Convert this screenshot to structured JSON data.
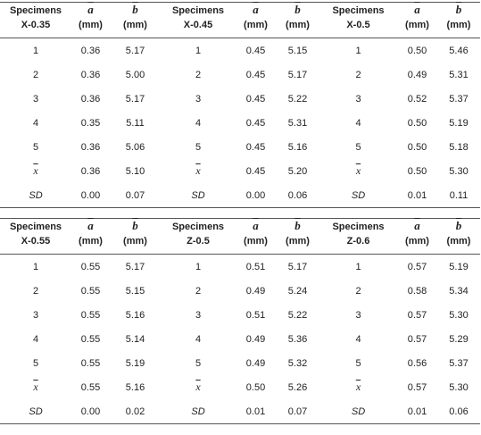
{
  "symbols": {
    "a": "a",
    "b": "b",
    "unit": "(mm)",
    "mean": "x",
    "sd": "SD"
  },
  "header_label": "Specimens",
  "groups_top": [
    {
      "name": "X-0.35",
      "rows": [
        [
          "1",
          "0.36",
          "5.17"
        ],
        [
          "2",
          "0.36",
          "5.00"
        ],
        [
          "3",
          "0.36",
          "5.17"
        ],
        [
          "4",
          "0.35",
          "5.11"
        ],
        [
          "5",
          "0.36",
          "5.06"
        ]
      ],
      "mean": [
        "0.36",
        "5.10"
      ],
      "sd": [
        "0.00",
        "0.07"
      ]
    },
    {
      "name": "X-0.45",
      "rows": [
        [
          "1",
          "0.45",
          "5.15"
        ],
        [
          "2",
          "0.45",
          "5.17"
        ],
        [
          "3",
          "0.45",
          "5.22"
        ],
        [
          "4",
          "0.45",
          "5.31"
        ],
        [
          "5",
          "0.45",
          "5.16"
        ]
      ],
      "mean": [
        "0.45",
        "5.20"
      ],
      "sd": [
        "0.00",
        "0.06"
      ]
    },
    {
      "name": "X-0.5",
      "rows": [
        [
          "1",
          "0.50",
          "5.46"
        ],
        [
          "2",
          "0.49",
          "5.31"
        ],
        [
          "3",
          "0.52",
          "5.37"
        ],
        [
          "4",
          "0.50",
          "5.19"
        ],
        [
          "5",
          "0.50",
          "5.18"
        ]
      ],
      "mean": [
        "0.50",
        "5.30"
      ],
      "sd": [
        "0.01",
        "0.11"
      ]
    }
  ],
  "groups_bottom": [
    {
      "name": "X-0.55",
      "rows": [
        [
          "1",
          "0.55",
          "5.17"
        ],
        [
          "2",
          "0.55",
          "5.15"
        ],
        [
          "3",
          "0.55",
          "5.16"
        ],
        [
          "4",
          "0.55",
          "5.14"
        ],
        [
          "5",
          "0.55",
          "5.19"
        ]
      ],
      "mean": [
        "0.55",
        "5.16"
      ],
      "sd": [
        "0.00",
        "0.02"
      ]
    },
    {
      "name": "Z-0.5",
      "rows": [
        [
          "1",
          "0.51",
          "5.17"
        ],
        [
          "2",
          "0.49",
          "5.24"
        ],
        [
          "3",
          "0.51",
          "5.22"
        ],
        [
          "4",
          "0.49",
          "5.36"
        ],
        [
          "5",
          "0.49",
          "5.32"
        ]
      ],
      "mean": [
        "0.50",
        "5.26"
      ],
      "sd": [
        "0.01",
        "0.07"
      ]
    },
    {
      "name": "Z-0.6",
      "rows": [
        [
          "1",
          "0.57",
          "5.19"
        ],
        [
          "2",
          "0.58",
          "5.34"
        ],
        [
          "3",
          "0.57",
          "5.30"
        ],
        [
          "4",
          "0.57",
          "5.29"
        ],
        [
          "5",
          "0.56",
          "5.37"
        ]
      ],
      "mean": [
        "0.57",
        "5.30"
      ],
      "sd": [
        "0.01",
        "0.06"
      ]
    }
  ]
}
